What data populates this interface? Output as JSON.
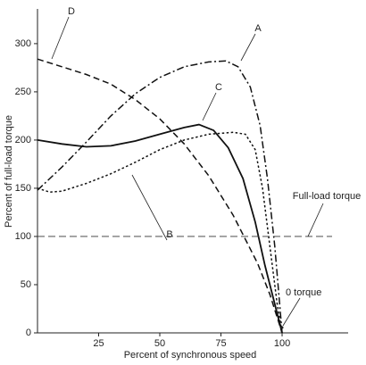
{
  "chart_data": {
    "type": "line",
    "x_label": "Percent of synchronous speed",
    "y_label": "Percent of full-load torque",
    "xlim": [
      0,
      127
    ],
    "ylim": [
      0,
      336
    ],
    "xticks": [
      25,
      50,
      75,
      100
    ],
    "yticks": [
      0,
      50,
      100,
      150,
      200,
      250,
      300
    ],
    "series": [
      {
        "name": "A",
        "color": "#111111",
        "style": "dashdot",
        "x": [
          0,
          10,
          20,
          30,
          40,
          50,
          60,
          70,
          77,
          82,
          87,
          91,
          94,
          97,
          100
        ],
        "values": [
          148,
          172,
          198,
          225,
          248,
          265,
          276,
          281,
          282,
          276,
          255,
          215,
          160,
          90,
          0
        ]
      },
      {
        "name": "B",
        "color": "#111111",
        "style": "dotted",
        "x": [
          0,
          5,
          10,
          20,
          30,
          40,
          50,
          60,
          70,
          80,
          85,
          89,
          92,
          95,
          98,
          100
        ],
        "values": [
          150,
          146,
          147,
          155,
          165,
          177,
          190,
          200,
          206,
          208,
          206,
          190,
          150,
          90,
          30,
          0
        ]
      },
      {
        "name": "C",
        "color": "#111111",
        "style": "solid",
        "x": [
          0,
          10,
          20,
          30,
          40,
          50,
          60,
          66,
          72,
          78,
          84,
          89,
          93,
          97,
          100
        ],
        "values": [
          200,
          196,
          193,
          194,
          199,
          206,
          213,
          216,
          210,
          192,
          160,
          115,
          70,
          30,
          0
        ]
      },
      {
        "name": "D",
        "color": "#111111",
        "style": "dashed",
        "x": [
          0,
          10,
          20,
          30,
          40,
          50,
          60,
          70,
          80,
          90,
          95,
          100
        ],
        "values": [
          284,
          276,
          268,
          258,
          242,
          222,
          196,
          163,
          122,
          72,
          40,
          0
        ]
      }
    ],
    "reference_line": {
      "value": 100,
      "label": "Full-load torque"
    },
    "zero_annotation": {
      "x": 100,
      "value": 0,
      "label": "0 torque"
    }
  }
}
